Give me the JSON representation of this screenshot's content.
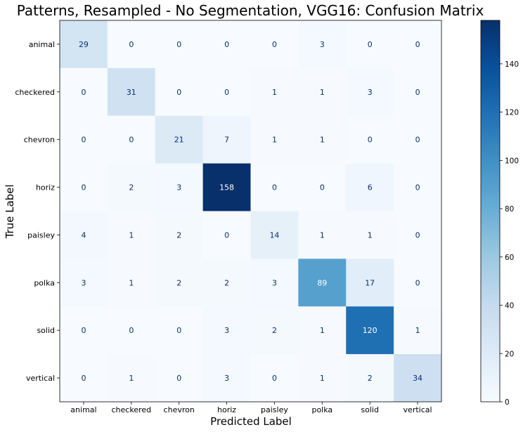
{
  "chart_data": {
    "type": "heatmap",
    "title": "Patterns, Resampled - No Segmentation, VGG16: Confusion Matrix",
    "xlabel": "Predicted Label",
    "ylabel": "True Label",
    "x_categories": [
      "animal",
      "checkered",
      "chevron",
      "horiz",
      "paisley",
      "polka",
      "solid",
      "vertical"
    ],
    "y_categories": [
      "animal",
      "checkered",
      "chevron",
      "horiz",
      "paisley",
      "polka",
      "solid",
      "vertical"
    ],
    "values": [
      [
        29,
        0,
        0,
        0,
        0,
        3,
        0,
        0
      ],
      [
        0,
        31,
        0,
        0,
        1,
        1,
        3,
        0
      ],
      [
        0,
        0,
        21,
        7,
        1,
        1,
        0,
        0
      ],
      [
        0,
        2,
        3,
        158,
        0,
        0,
        6,
        0
      ],
      [
        4,
        1,
        2,
        0,
        14,
        1,
        1,
        0
      ],
      [
        3,
        1,
        2,
        2,
        3,
        89,
        17,
        0
      ],
      [
        0,
        0,
        0,
        3,
        2,
        1,
        120,
        1
      ],
      [
        0,
        1,
        0,
        3,
        0,
        1,
        2,
        34
      ]
    ],
    "colormap": "Blues",
    "colorbar_range": [
      0,
      158
    ],
    "colorbar_ticks": [
      0,
      20,
      40,
      60,
      80,
      100,
      120,
      140
    ],
    "grid": false
  }
}
